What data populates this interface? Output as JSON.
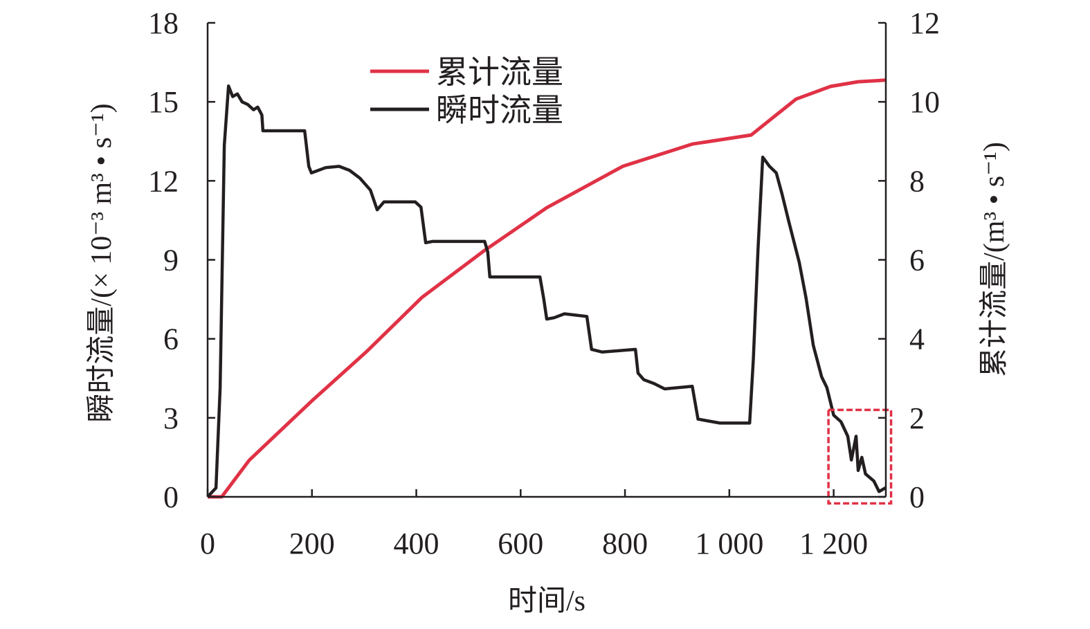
{
  "chart_data": {
    "type": "line",
    "xlabel": "时间/s",
    "ylabel_left": "瞬时流量/(× 10⁻³ m³ • s⁻¹)",
    "ylabel_right": "累计流量/(m³ • s⁻¹)",
    "xlim": [
      0,
      1300
    ],
    "ylim_left": [
      0,
      18
    ],
    "ylim_right": [
      0,
      12
    ],
    "x_ticks": [
      0,
      200,
      400,
      600,
      800,
      1000,
      1200
    ],
    "x_tick_labels": [
      "0",
      "200",
      "400",
      "600",
      "800",
      "1 000",
      "1 200"
    ],
    "y_left_ticks": [
      0,
      3,
      6,
      9,
      12,
      15,
      18
    ],
    "y_left_tick_labels": [
      "0",
      "3",
      "6",
      "9",
      "12",
      "15",
      "18"
    ],
    "y_right_ticks": [
      0,
      2,
      4,
      6,
      8,
      10,
      12
    ],
    "y_right_tick_labels": [
      "0",
      "2",
      "4",
      "6",
      "8",
      "10",
      "12"
    ],
    "grid": false,
    "legend_position": "top-center",
    "series": [
      {
        "name": "累计流量",
        "axis": "right",
        "color": "#e03246",
        "x": [
          0,
          27,
          80,
          199,
          305,
          411,
          531,
          650,
          796,
          929,
          1042,
          1075,
          1128,
          1194,
          1247,
          1300
        ],
        "y": [
          0,
          0,
          0.93,
          2.42,
          3.68,
          5.05,
          6.24,
          7.32,
          8.37,
          8.93,
          9.16,
          9.51,
          10.07,
          10.39,
          10.51,
          10.55
        ]
      },
      {
        "name": "瞬时流量",
        "axis": "left",
        "color": "#231f20",
        "x": [
          0,
          16,
          24,
          32,
          40,
          48,
          57,
          66,
          77,
          88,
          96,
          104,
          106,
          133,
          186,
          194,
          199,
          226,
          252,
          272,
          292,
          312,
          325,
          338,
          398,
          409,
          418,
          431,
          531,
          537,
          541,
          637,
          644,
          650,
          664,
          684,
          727,
          736,
          756,
          820,
          825,
          836,
          856,
          876,
          929,
          940,
          982,
          1039,
          1046,
          1055,
          1064,
          1077,
          1090,
          1101,
          1114,
          1134,
          1147,
          1161,
          1177,
          1187,
          1200,
          1214,
          1227,
          1234,
          1243,
          1247,
          1254,
          1261,
          1277,
          1287,
          1300
        ],
        "y": [
          0,
          0.34,
          4.15,
          13.35,
          15.6,
          15.2,
          15.3,
          15.0,
          14.9,
          14.7,
          14.8,
          14.5,
          13.9,
          13.9,
          13.9,
          12.55,
          12.3,
          12.5,
          12.55,
          12.4,
          12.1,
          11.65,
          10.9,
          11.2,
          11.2,
          11.0,
          9.65,
          9.7,
          9.7,
          9.3,
          8.35,
          8.35,
          7.55,
          6.75,
          6.8,
          6.95,
          6.85,
          5.6,
          5.5,
          5.6,
          4.7,
          4.45,
          4.3,
          4.1,
          4.2,
          2.95,
          2.8,
          2.8,
          5.2,
          9.4,
          12.9,
          12.55,
          12.3,
          11.5,
          10.45,
          8.9,
          7.55,
          5.75,
          4.55,
          4.15,
          3.1,
          2.85,
          2.3,
          1.4,
          2.3,
          1.0,
          1.5,
          0.87,
          0.6,
          0.2,
          0.35
        ]
      }
    ],
    "highlight_box": {
      "x": [
        1190,
        1310
      ],
      "y_left": [
        -0.25,
        3.3
      ],
      "color": "#e03246",
      "style": "dashed"
    }
  }
}
